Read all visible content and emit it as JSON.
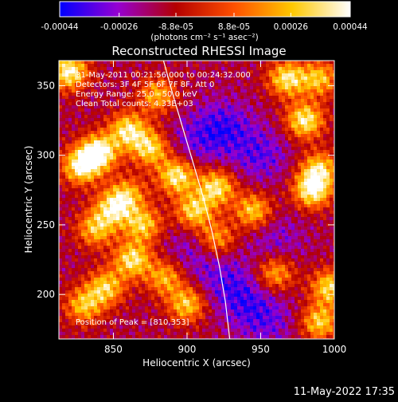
{
  "chart_data": {
    "type": "heatmap",
    "title": "Reconstructed RHESSI Image",
    "xlabel": "Heliocentric X (arcsec)",
    "ylabel": "Heliocentric Y (arcsec)",
    "xlim": [
      813,
      1000
    ],
    "ylim": [
      168,
      368
    ],
    "x_ticks": [
      850,
      900,
      950,
      1000
    ],
    "y_ticks": [
      200,
      250,
      300,
      350
    ],
    "x_tick_labels": [
      "850",
      "900",
      "950",
      "1000"
    ],
    "y_tick_labels": [
      "200",
      "250",
      "300",
      "350"
    ],
    "colorbar": {
      "min": -0.00044,
      "max": 0.00044,
      "ticks": [
        -0.00044,
        -0.00026,
        -8.8e-05,
        8.8e-05,
        0.00026,
        0.00044
      ],
      "tick_labels": [
        "-0.00044",
        "-0.00026",
        "-8.8e-05",
        "8.8e-05",
        "0.00026",
        "0.00044"
      ],
      "unit_label": "(photons cm⁻² s⁻¹ asec⁻²)",
      "colormap": [
        "#0000ff",
        "#9600d2",
        "#b40000",
        "#ff5000",
        "#ffc800",
        "#ffffff"
      ]
    },
    "annotations": [
      "31-May-2011 00:21:56.000 to 00:24:32.000",
      "Detectors: 3F 4F 5F 6F 7F 8F, Att 0",
      "Energy Range: 25.0 - 50.0 keV",
      "Clean    Total counts: 4.33E+03"
    ],
    "peak_label": "Position of Peak = [810,353]",
    "limb_curve": {
      "x": [
        884,
        890,
        897,
        904,
        911,
        917,
        922,
        926,
        929
      ],
      "y": [
        368,
        345,
        320,
        295,
        270,
        245,
        220,
        195,
        168
      ]
    },
    "hotspots": [
      {
        "x": 840,
        "y": 302,
        "strength": 1.0
      },
      {
        "x": 828,
        "y": 292,
        "strength": 0.85
      },
      {
        "x": 860,
        "y": 318,
        "strength": 0.8
      },
      {
        "x": 875,
        "y": 305,
        "strength": 0.75
      },
      {
        "x": 893,
        "y": 285,
        "strength": 0.85
      },
      {
        "x": 905,
        "y": 260,
        "strength": 0.75
      },
      {
        "x": 920,
        "y": 277,
        "strength": 0.8
      },
      {
        "x": 945,
        "y": 260,
        "strength": 0.7
      },
      {
        "x": 985,
        "y": 275,
        "strength": 0.9
      },
      {
        "x": 990,
        "y": 290,
        "strength": 0.7
      },
      {
        "x": 980,
        "y": 325,
        "strength": 0.85
      },
      {
        "x": 968,
        "y": 355,
        "strength": 0.8
      },
      {
        "x": 990,
        "y": 355,
        "strength": 0.65
      },
      {
        "x": 850,
        "y": 262,
        "strength": 0.75
      },
      {
        "x": 870,
        "y": 250,
        "strength": 0.7
      },
      {
        "x": 838,
        "y": 247,
        "strength": 0.65
      },
      {
        "x": 863,
        "y": 225,
        "strength": 0.8
      },
      {
        "x": 885,
        "y": 212,
        "strength": 0.6
      },
      {
        "x": 845,
        "y": 205,
        "strength": 0.7
      },
      {
        "x": 830,
        "y": 192,
        "strength": 0.65
      },
      {
        "x": 900,
        "y": 193,
        "strength": 0.7
      },
      {
        "x": 920,
        "y": 240,
        "strength": 0.6
      },
      {
        "x": 960,
        "y": 215,
        "strength": 0.6
      },
      {
        "x": 997,
        "y": 205,
        "strength": 0.75
      },
      {
        "x": 990,
        "y": 180,
        "strength": 0.7
      },
      {
        "x": 880,
        "y": 343,
        "strength": 0.6
      },
      {
        "x": 820,
        "y": 360,
        "strength": 0.9
      },
      {
        "x": 860,
        "y": 272,
        "strength": 0.55
      }
    ],
    "coldspots": [
      {
        "x": 925,
        "y": 320,
        "strength": 0.8
      },
      {
        "x": 950,
        "y": 300,
        "strength": 0.7
      },
      {
        "x": 905,
        "y": 310,
        "strength": 0.5
      },
      {
        "x": 940,
        "y": 195,
        "strength": 0.6
      },
      {
        "x": 960,
        "y": 240,
        "strength": 0.5
      },
      {
        "x": 925,
        "y": 210,
        "strength": 0.55
      },
      {
        "x": 955,
        "y": 180,
        "strength": 0.55
      },
      {
        "x": 905,
        "y": 232,
        "strength": 0.5
      }
    ]
  },
  "footer": {
    "timestamp": "11-May-2022 17:35"
  }
}
